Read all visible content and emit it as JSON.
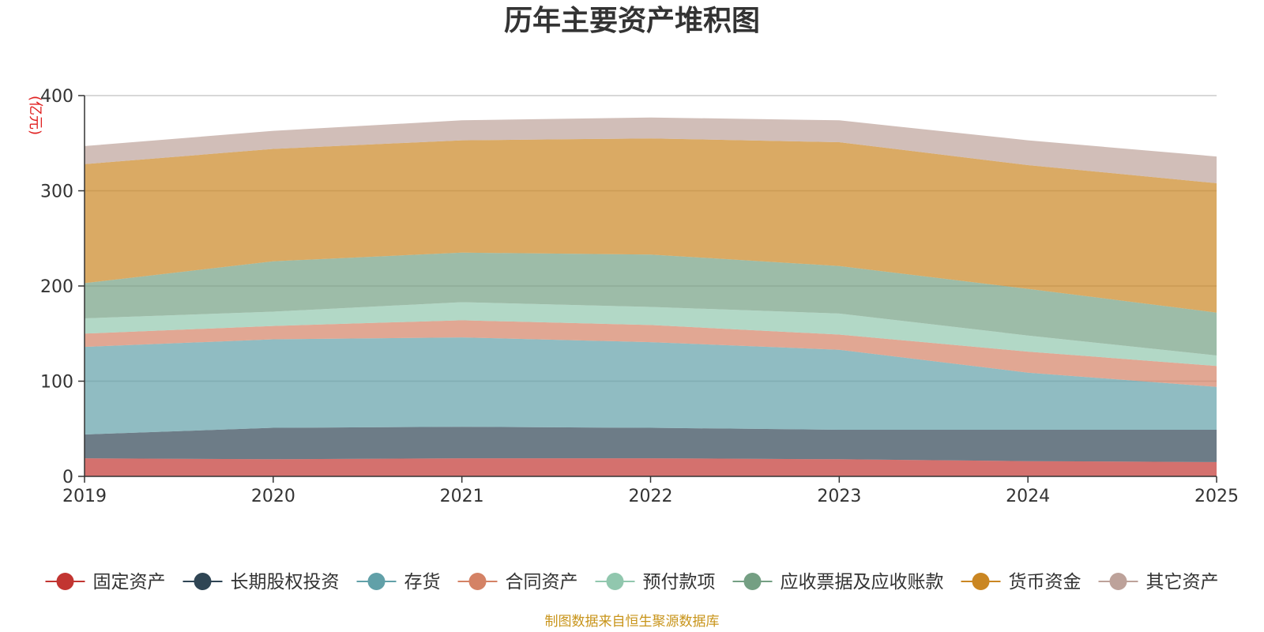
{
  "chart_data": {
    "type": "area",
    "stacked": true,
    "title": "历年主要资产堆积图",
    "unit": "(亿元)",
    "source": "制图数据来自恒生聚源数据库",
    "x": [
      "2019",
      "2020",
      "2021",
      "2022",
      "2023",
      "2024",
      "2025"
    ],
    "ylim": [
      0,
      400
    ],
    "yticks": [
      0,
      100,
      200,
      300,
      400
    ],
    "grid": true,
    "legend_position": "bottom",
    "series": [
      {
        "name": "固定资产",
        "color": "#c23531",
        "values": [
          19,
          18,
          19,
          19,
          18,
          16,
          15
        ]
      },
      {
        "name": "长期股权投资",
        "color": "#2f4554",
        "values": [
          25,
          33,
          33,
          32,
          31,
          33,
          34
        ]
      },
      {
        "name": "存货",
        "color": "#61a0a8",
        "values": [
          92,
          93,
          94,
          90,
          84,
          60,
          45
        ]
      },
      {
        "name": "合同资产",
        "color": "#d48265",
        "values": [
          14,
          14,
          18,
          18,
          16,
          22,
          22
        ]
      },
      {
        "name": "预付款项",
        "color": "#91c7ae",
        "values": [
          16,
          15,
          19,
          19,
          22,
          17,
          11
        ]
      },
      {
        "name": "应收票据及应收账款",
        "color": "#749f83",
        "values": [
          37,
          53,
          52,
          55,
          50,
          49,
          45
        ]
      },
      {
        "name": "货币资金",
        "color": "#ca8622",
        "values": [
          125,
          118,
          118,
          122,
          130,
          130,
          136
        ]
      },
      {
        "name": "其它资产",
        "color": "#bda29a",
        "values": [
          19,
          19,
          21,
          22,
          23,
          26,
          28
        ]
      }
    ]
  }
}
